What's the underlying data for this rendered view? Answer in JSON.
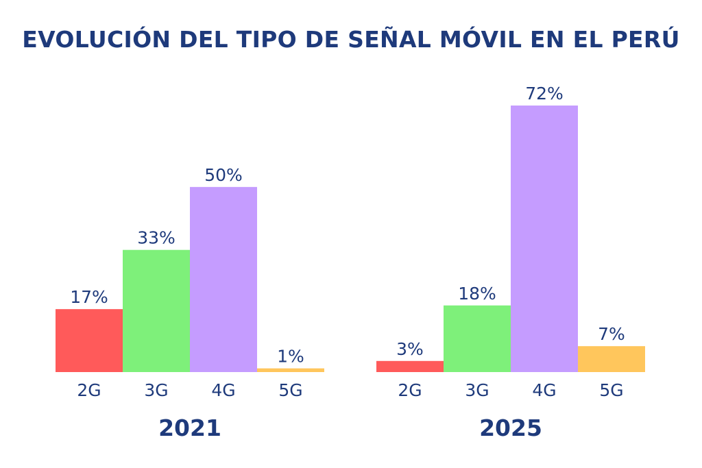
{
  "title": "EVOLUCIÓN DEL TIPO DE SEÑAL MÓVIL EN EL PERÚ",
  "colors": {
    "text": "#1e3a7b",
    "2G": "#ff5a5a",
    "3G": "#7ef07a",
    "4G": "#c59cff",
    "5G": "#ffc65c"
  },
  "chart_data": [
    {
      "type": "bar",
      "title": "2021",
      "categories": [
        "2G",
        "3G",
        "4G",
        "5G"
      ],
      "values": [
        17,
        33,
        50,
        1
      ],
      "value_labels": [
        "17%",
        "33%",
        "50%",
        "1%"
      ],
      "unit": "%",
      "ylim": [
        0,
        72
      ]
    },
    {
      "type": "bar",
      "title": "2025",
      "categories": [
        "2G",
        "3G",
        "4G",
        "5G"
      ],
      "values": [
        3,
        18,
        72,
        7
      ],
      "value_labels": [
        "3%",
        "18%",
        "72%",
        "7%"
      ],
      "unit": "%",
      "ylim": [
        0,
        72
      ]
    }
  ]
}
